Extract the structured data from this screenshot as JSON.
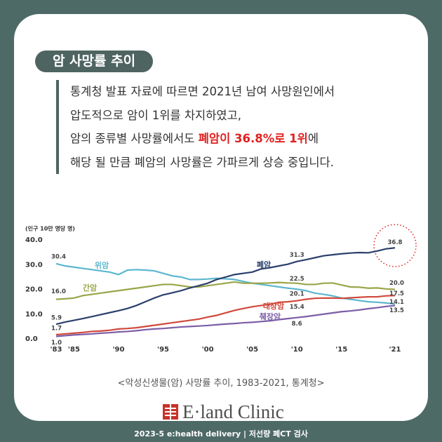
{
  "title": "암 사망률 추이",
  "paragraph": [
    [
      "통계청 발표 자료에 따르면 2021년 남여 사망원인에서"
    ],
    [
      "압도적으로 암이 1위를 차지하였고,"
    ],
    [
      "암의 종류별 사망률에서도 ",
      "폐암이 36.8%로 1위",
      "에"
    ],
    [
      "해당 될 만큼 폐암의 사망률은 가파르게 상승 중입니다."
    ]
  ],
  "chart_data": {
    "type": "line",
    "ylabel": "(인구 10만 명당 명)",
    "x": [
      1983,
      1984,
      1985,
      1986,
      1987,
      1988,
      1989,
      1990,
      1991,
      1992,
      1993,
      1994,
      1995,
      1996,
      1997,
      1998,
      1999,
      2000,
      2001,
      2002,
      2003,
      2004,
      2005,
      2006,
      2007,
      2008,
      2009,
      2010,
      2011,
      2012,
      2013,
      2014,
      2015,
      2016,
      2017,
      2018,
      2019,
      2020,
      2021
    ],
    "xlim": [
      1983,
      2021
    ],
    "xticks": [
      {
        "value": 1983,
        "label": "'83"
      },
      {
        "value": 1985,
        "label": "'85"
      },
      {
        "value": 1990,
        "label": "'90"
      },
      {
        "value": 1995,
        "label": "'95"
      },
      {
        "value": 2000,
        "label": "'00"
      },
      {
        "value": 2005,
        "label": "'05"
      },
      {
        "value": 2010,
        "label": "'10"
      },
      {
        "value": 2015,
        "label": "'15"
      },
      {
        "value": 2021,
        "label": "'21"
      }
    ],
    "ylim": [
      0,
      40
    ],
    "yticks": [
      {
        "value": 0,
        "label": "0.0"
      },
      {
        "value": 10,
        "label": "10.0"
      },
      {
        "value": 20,
        "label": "20.0"
      },
      {
        "value": 30,
        "label": "30.0"
      },
      {
        "value": 40,
        "label": "40.0"
      }
    ],
    "grid": false,
    "series": [
      {
        "name": "위암",
        "color": "#5db7cf",
        "values": [
          30.4,
          29.5,
          29.0,
          28.5,
          28.0,
          27.5,
          27.0,
          26.0,
          27.8,
          28.0,
          27.8,
          27.5,
          26.5,
          25.5,
          25.0,
          24.0,
          24.0,
          24.2,
          24.5,
          24.3,
          24.0,
          23.2,
          22.5,
          22.0,
          21.5,
          21.0,
          20.5,
          20.1,
          19.5,
          18.5,
          18.0,
          17.4,
          16.5,
          16.0,
          15.5,
          15.0,
          14.8,
          14.5,
          14.1
        ],
        "value_labels": [
          "30.4",
          null,
          null,
          null,
          null,
          null,
          null,
          null,
          null,
          null,
          null,
          null,
          null,
          null,
          null,
          null,
          null,
          null,
          null,
          null,
          null,
          null,
          null,
          null,
          null,
          null,
          null,
          "20.1",
          null,
          null,
          null,
          null,
          null,
          null,
          null,
          null,
          null,
          null,
          "14.1"
        ]
      },
      {
        "name": "간암",
        "color": "#9aa548",
        "values": [
          16.0,
          16.2,
          16.5,
          17.5,
          18.0,
          18.5,
          19.0,
          19.5,
          20.0,
          20.5,
          21.0,
          21.5,
          22.0,
          22.0,
          21.5,
          21.0,
          21.0,
          21.5,
          22.0,
          22.5,
          23.0,
          22.5,
          22.5,
          22.5,
          22.6,
          22.8,
          22.6,
          22.5,
          22.0,
          22.0,
          22.5,
          22.6,
          21.8,
          21.0,
          20.9,
          20.5,
          20.6,
          20.2,
          20.0
        ],
        "value_labels": [
          "16.0",
          null,
          null,
          null,
          null,
          null,
          null,
          null,
          null,
          null,
          null,
          null,
          null,
          null,
          null,
          null,
          null,
          null,
          null,
          null,
          null,
          null,
          null,
          null,
          null,
          null,
          null,
          "22.5",
          null,
          null,
          null,
          null,
          null,
          null,
          null,
          null,
          null,
          null,
          "20.0"
        ]
      },
      {
        "name": "폐암",
        "color": "#2b3f6c",
        "values": [
          5.9,
          6.8,
          7.5,
          8.2,
          9.0,
          9.8,
          10.6,
          11.4,
          12.3,
          13.5,
          15.0,
          16.5,
          17.8,
          18.6,
          19.5,
          20.6,
          21.5,
          22.5,
          24.0,
          25.0,
          26.0,
          26.5,
          27.0,
          28.3,
          28.8,
          29.5,
          30.2,
          31.3,
          32.0,
          32.8,
          33.6,
          34.0,
          34.4,
          34.7,
          34.9,
          34.8,
          35.5,
          36.4,
          36.8
        ],
        "value_labels": [
          "5.9",
          null,
          null,
          null,
          null,
          null,
          null,
          null,
          null,
          null,
          null,
          null,
          null,
          null,
          null,
          null,
          null,
          null,
          null,
          null,
          null,
          null,
          null,
          null,
          null,
          null,
          null,
          "31.3",
          null,
          null,
          null,
          null,
          null,
          null,
          null,
          null,
          null,
          null,
          "36.8"
        ]
      },
      {
        "name": "대장암",
        "color": "#d0483c",
        "values": [
          1.7,
          2.0,
          2.3,
          2.6,
          3.0,
          3.2,
          3.5,
          4.0,
          4.2,
          4.5,
          5.0,
          5.5,
          6.0,
          6.5,
          7.0,
          7.5,
          8.0,
          8.8,
          9.5,
          10.5,
          11.5,
          12.3,
          13.0,
          13.5,
          14.0,
          14.8,
          15.0,
          15.4,
          16.0,
          16.4,
          16.5,
          16.5,
          16.4,
          16.6,
          16.8,
          17.0,
          17.0,
          17.4,
          17.5
        ],
        "value_labels": [
          "1.7",
          null,
          null,
          null,
          null,
          null,
          null,
          null,
          null,
          null,
          null,
          null,
          null,
          null,
          null,
          null,
          null,
          null,
          null,
          null,
          null,
          null,
          null,
          null,
          null,
          null,
          null,
          "15.4",
          null,
          null,
          null,
          null,
          null,
          null,
          null,
          null,
          null,
          null,
          "17.5"
        ]
      },
      {
        "name": "췌장암",
        "color": "#7c5ea6",
        "values": [
          1.0,
          1.3,
          1.6,
          1.8,
          2.0,
          2.3,
          2.5,
          2.8,
          3.0,
          3.3,
          3.7,
          4.0,
          4.2,
          4.5,
          4.8,
          5.0,
          5.2,
          5.4,
          5.7,
          6.0,
          6.2,
          6.5,
          6.7,
          7.0,
          7.3,
          7.8,
          8.2,
          8.6,
          9.0,
          9.5,
          10.0,
          10.5,
          11.0,
          11.3,
          11.7,
          12.2,
          12.6,
          13.1,
          13.5
        ],
        "value_labels": [
          "1.0",
          null,
          null,
          null,
          null,
          null,
          null,
          null,
          null,
          null,
          null,
          null,
          null,
          null,
          null,
          null,
          null,
          null,
          null,
          null,
          null,
          null,
          null,
          null,
          null,
          null,
          null,
          "8.6",
          null,
          null,
          null,
          null,
          null,
          null,
          null,
          null,
          null,
          null,
          "13.5"
        ]
      }
    ]
  },
  "caption": "<악성신생물(암) 사망률 추이, 1983-2021, 통계청>",
  "logo": "E·land Clinic",
  "footer": "2023-5 e:health delivery | 저선량 폐CT 검사"
}
